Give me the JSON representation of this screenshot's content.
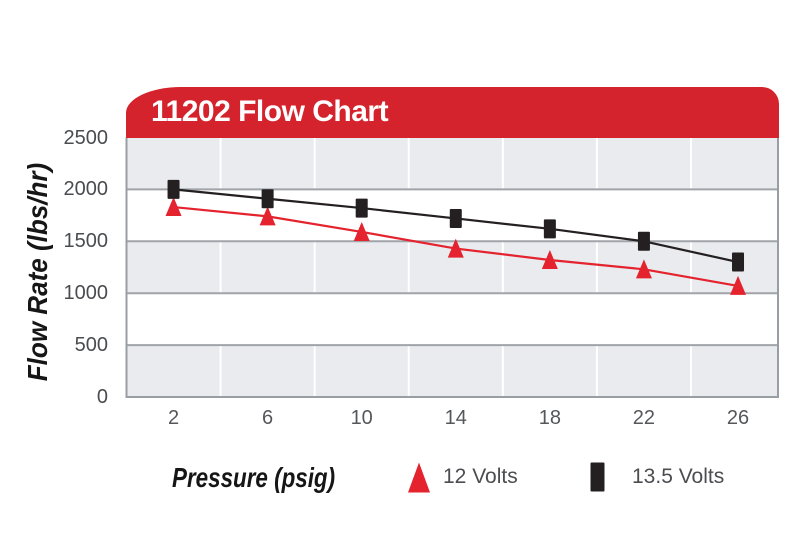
{
  "chart": {
    "title": "11202 Flow Chart",
    "y_axis_title": "Flow Rate (lbs/hr)",
    "x_axis_title": "Pressure (psig)"
  },
  "colors": {
    "banner_red": "#d4232c",
    "series_red": "#e4232e",
    "series_black": "#241f21",
    "band_gray": "#e9ebee",
    "grid_line": "#a0a4a9",
    "frame_line": "#999ea4",
    "vertical_grid": "#ffffff",
    "tick_text": "#4a4c4f",
    "banner_text": "#ffffff"
  },
  "chart_data": {
    "type": "line",
    "title": "11202 Flow Chart",
    "xlabel": "Pressure (psig)",
    "ylabel": "Flow Rate (lbs/hr)",
    "x": [
      2,
      6,
      10,
      14,
      18,
      22,
      26
    ],
    "xticks": [
      2,
      6,
      10,
      14,
      18,
      22,
      26
    ],
    "yticks": [
      0,
      500,
      1000,
      1500,
      2000,
      2500
    ],
    "xlim": [
      0,
      27.7
    ],
    "ylim": [
      0,
      2500
    ],
    "grid": "horizontal gridlines every 500 with alternating gray/white bands; faint vertical gridlines every 4 psig",
    "legend_position": "bottom",
    "series": [
      {
        "name": "12 Volts",
        "marker": "triangle",
        "color": "#e4232e",
        "values": [
          1830,
          1740,
          1590,
          1430,
          1320,
          1230,
          1070
        ]
      },
      {
        "name": "13.5 Volts",
        "marker": "square",
        "color": "#241f21",
        "values": [
          2000,
          1910,
          1820,
          1720,
          1620,
          1500,
          1300
        ]
      }
    ]
  }
}
